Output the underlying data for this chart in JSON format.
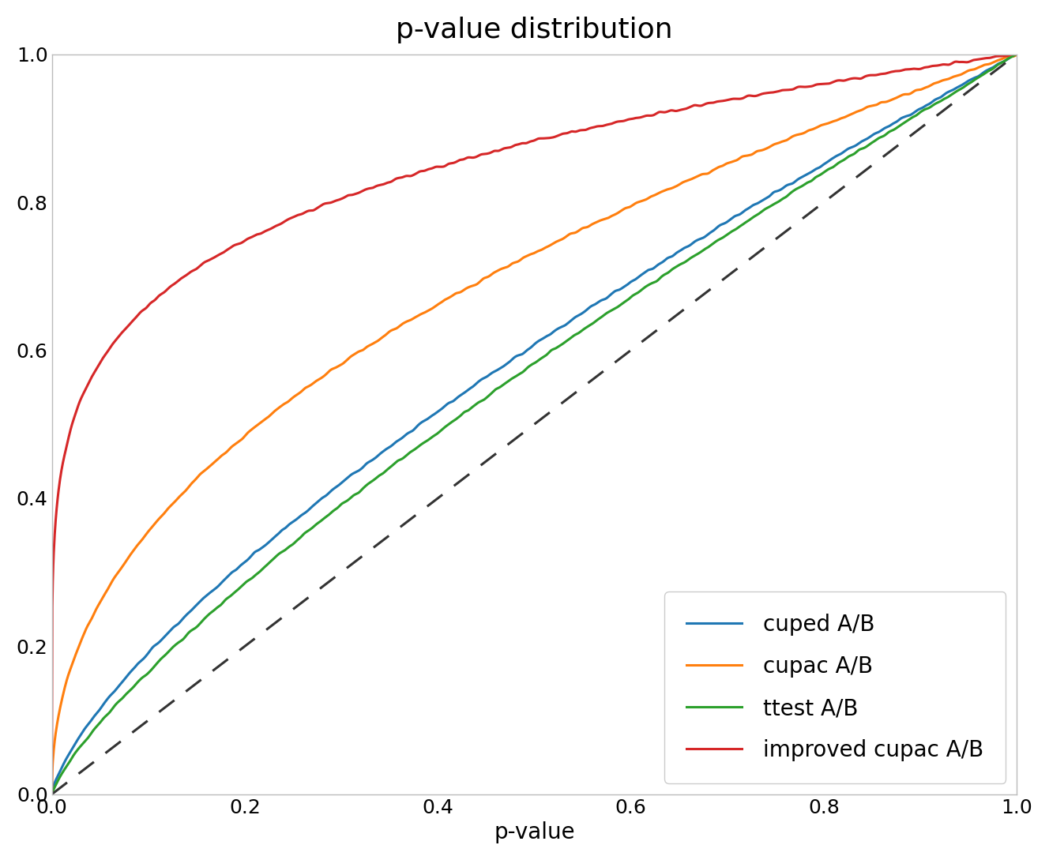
{
  "title": "p-value distribution",
  "xlabel": "p-value",
  "ylabel": "",
  "xlim": [
    0.0,
    1.0
  ],
  "ylim": [
    0.0,
    1.0
  ],
  "xticks": [
    0.0,
    0.2,
    0.4,
    0.6,
    0.8,
    1.0
  ],
  "yticks": [
    0.0,
    0.2,
    0.4,
    0.6,
    0.8,
    1.0
  ],
  "title_fontsize": 26,
  "label_fontsize": 20,
  "tick_fontsize": 18,
  "legend_fontsize": 20,
  "lines": [
    {
      "label": "cuped A/B",
      "color": "#1f77b4",
      "linewidth": 2.2,
      "beta_a": 0.72,
      "beta_b": 1.0
    },
    {
      "label": "cupac A/B",
      "color": "#ff7f0e",
      "linewidth": 2.2,
      "beta_a": 0.45,
      "beta_b": 1.0
    },
    {
      "label": "ttest A/B",
      "color": "#2ca02c",
      "linewidth": 2.2,
      "beta_a": 0.78,
      "beta_b": 1.0
    },
    {
      "label": "improved cupac A/B",
      "color": "#d62728",
      "linewidth": 2.2,
      "beta_a": 0.18,
      "beta_b": 1.0
    }
  ],
  "diagonal_color": "#333333",
  "diagonal_linewidth": 2.2,
  "diagonal_linestyle": "--",
  "background_color": "#ffffff",
  "legend_loc": "lower right",
  "n_points": 2000,
  "noise_seed": 42
}
